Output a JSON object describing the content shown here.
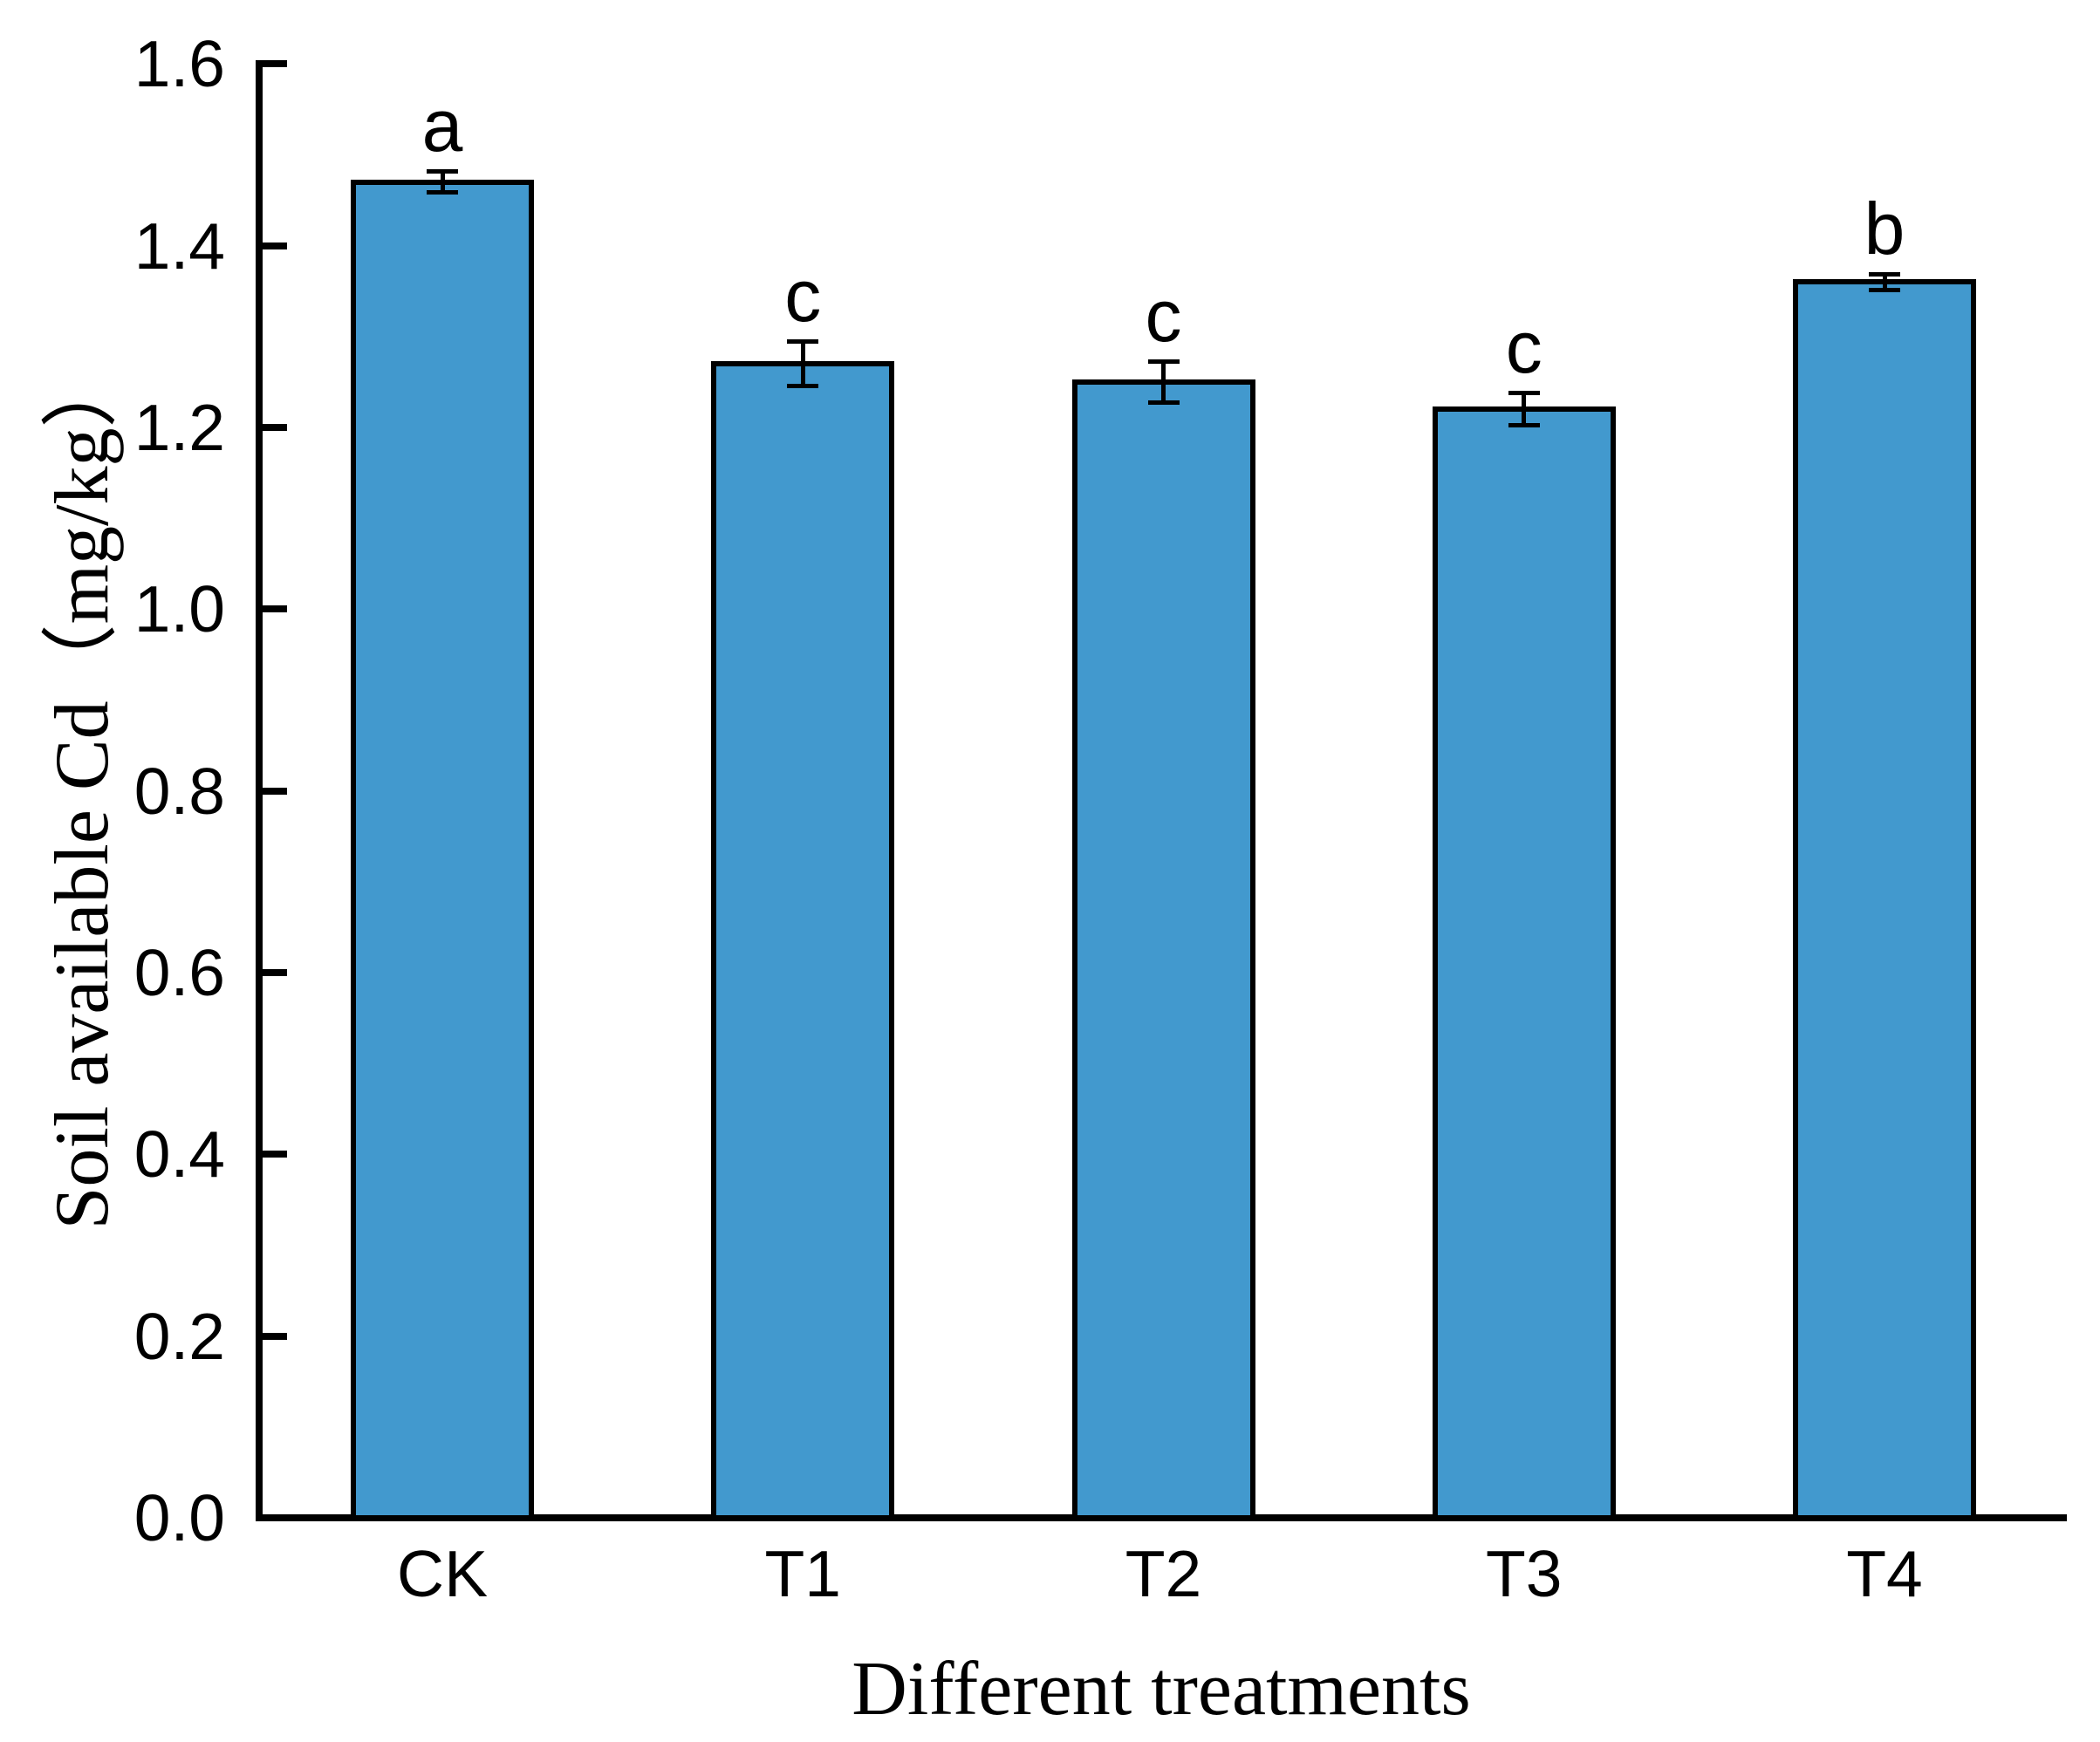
{
  "chart_data": {
    "type": "bar",
    "title": "",
    "categories": [
      "CK",
      "T1",
      "T2",
      "T3",
      "T4"
    ],
    "values": [
      1.47,
      1.27,
      1.25,
      1.22,
      1.36
    ],
    "errors": [
      0.012,
      0.025,
      0.023,
      0.018,
      0.009
    ],
    "sig_letters": [
      "a",
      "c",
      "c",
      "c",
      "b"
    ],
    "xlabel": "Different treatments",
    "ylabel": "Soil available Cd（mg/kg）",
    "ylim": [
      0.0,
      1.6
    ],
    "ytick_step": 0.2,
    "ytick_labels": [
      "0.0",
      "0.2",
      "0.4",
      "0.6",
      "0.8",
      "1.0",
      "1.2",
      "1.4",
      "1.6"
    ],
    "grid": "off",
    "legend": "none",
    "bar_color": "#4299CE",
    "bar_border_color": "#000000",
    "axis_color": "#000000",
    "error_bar_color": "#000000",
    "text_color": "#000000"
  }
}
